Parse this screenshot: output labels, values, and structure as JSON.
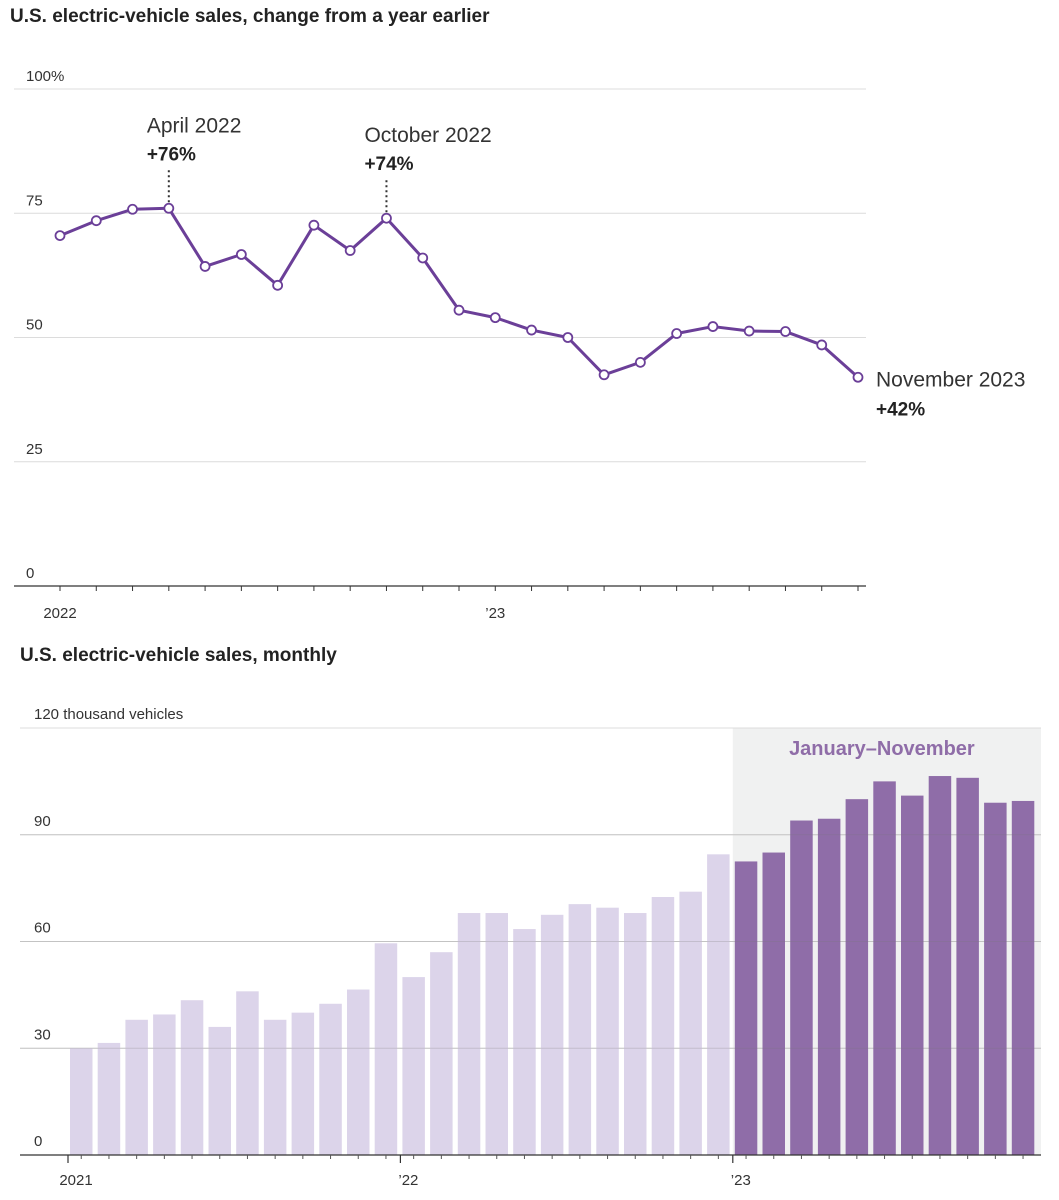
{
  "chart_data": [
    {
      "type": "line",
      "title": "U.S. electric-vehicle sales, change from a year earlier",
      "xlabel": "",
      "ylabel": "",
      "ylim": [
        0,
        100
      ],
      "yticks": [
        {
          "value": 0,
          "label": "0"
        },
        {
          "value": 25,
          "label": "25"
        },
        {
          "value": 50,
          "label": "50"
        },
        {
          "value": 75,
          "label": "75"
        },
        {
          "value": 100,
          "label": "100%"
        }
      ],
      "xtick_labels": [
        {
          "index": 0,
          "label": "2022"
        },
        {
          "index": 12,
          "label": "’23"
        }
      ],
      "series": [
        {
          "name": "Change from a year earlier",
          "color": "#6b3f98",
          "x": [
            "Jan 2022",
            "Feb 2022",
            "Mar 2022",
            "Apr 2022",
            "May 2022",
            "Jun 2022",
            "Jul 2022",
            "Aug 2022",
            "Sep 2022",
            "Oct 2022",
            "Nov 2022",
            "Dec 2022",
            "Jan 2023",
            "Feb 2023",
            "Mar 2023",
            "Apr 2023",
            "May 2023",
            "Jun 2023",
            "Jul 2023",
            "Aug 2023",
            "Sep 2023",
            "Oct 2023",
            "Nov 2023"
          ],
          "values": [
            70.5,
            73.5,
            75.8,
            76,
            64.3,
            66.7,
            60.5,
            72.6,
            67.5,
            74,
            66,
            55.5,
            54,
            51.5,
            50,
            42.5,
            45,
            50.8,
            52.2,
            51.3,
            51.2,
            48.5,
            42
          ]
        }
      ],
      "annotations": [
        {
          "index": 3,
          "label": "April 2022",
          "value": "+76%"
        },
        {
          "index": 9,
          "label": "October 2022",
          "value": "+74%"
        },
        {
          "index": 22,
          "label": "November 2023",
          "value": "+42%"
        }
      ]
    },
    {
      "type": "bar",
      "title": "U.S. electric-vehicle sales, monthly",
      "xlabel": "",
      "ylabel": "",
      "ylim": [
        0,
        120
      ],
      "yticks": [
        {
          "value": 0,
          "label": "0"
        },
        {
          "value": 30,
          "label": "30"
        },
        {
          "value": 60,
          "label": "60"
        },
        {
          "value": 90,
          "label": "90"
        },
        {
          "value": 120,
          "label": "120 thousand vehicles"
        }
      ],
      "xtick_labels": [
        {
          "index": 0,
          "label": "2021"
        },
        {
          "index": 12,
          "label": "’22"
        },
        {
          "index": 24,
          "label": "’23"
        }
      ],
      "highlight": {
        "start_index": 24,
        "end_index": 34,
        "label": "January–November",
        "color": "#8f6da8",
        "background": "#f0f1f1"
      },
      "series": [
        {
          "name": "Monthly sales (thousand vehicles)",
          "color_past": "#dcd4ea",
          "color_highlight": "#8f6da8",
          "values": [
            30,
            31.5,
            38,
            39.5,
            43.5,
            36,
            46,
            38,
            40,
            42.5,
            46.5,
            59.5,
            50,
            57,
            68,
            68,
            63.5,
            67.5,
            70.5,
            69.5,
            68,
            72.5,
            74,
            84.5,
            82.5,
            85,
            94,
            94.5,
            100,
            105,
            101,
            106.5,
            106,
            99,
            99.5
          ]
        }
      ]
    }
  ]
}
